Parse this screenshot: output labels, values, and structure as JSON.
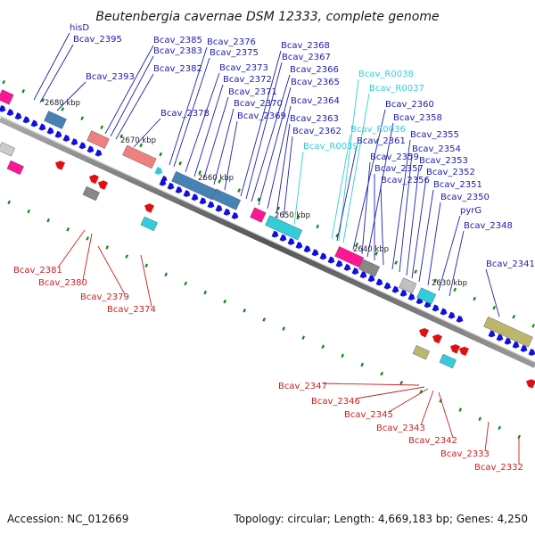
{
  "title": "Beutenbergia cavernae DSM 12333, complete genome",
  "footer": {
    "accession": "Accession: NC_012669",
    "summary": "Topology: circular; Length: 4,669,183 bp; Genes: 4,250"
  },
  "colors": {
    "forward_gene": "#1010e0",
    "reverse_gene": "#e01010",
    "rna_gene": "#33ccdd",
    "forward_label": "#2020b0",
    "reverse_label": "#cc2020",
    "rna_label": "#33ccdd",
    "backbone": "#777777",
    "tick": "#118811"
  },
  "kbp_marks": [
    "2680 kbp",
    "2670 kbp",
    "2660 kbp",
    "2650 kbp",
    "2640 kbp",
    "2630 kbp"
  ],
  "top_labels": [
    {
      "text": "hisD",
      "kind": "forward"
    },
    {
      "text": "Bcav_2395",
      "kind": "forward"
    },
    {
      "text": "Bcav_2393",
      "kind": "forward"
    },
    {
      "text": "Bcav_2385",
      "kind": "forward"
    },
    {
      "text": "Bcav_2383",
      "kind": "forward"
    },
    {
      "text": "Bcav_2382",
      "kind": "forward"
    },
    {
      "text": "Bcav_2378",
      "kind": "forward"
    },
    {
      "text": "Bcav_2376",
      "kind": "forward"
    },
    {
      "text": "Bcav_2375",
      "kind": "forward"
    },
    {
      "text": "Bcav_2373",
      "kind": "forward"
    },
    {
      "text": "Bcav_2372",
      "kind": "forward"
    },
    {
      "text": "Bcav_2371",
      "kind": "forward"
    },
    {
      "text": "Bcav_2370",
      "kind": "forward"
    },
    {
      "text": "Bcav_2369",
      "kind": "forward"
    },
    {
      "text": "Bcav_2368",
      "kind": "forward"
    },
    {
      "text": "Bcav_2367",
      "kind": "forward"
    },
    {
      "text": "Bcav_2366",
      "kind": "forward"
    },
    {
      "text": "Bcav_2365",
      "kind": "forward"
    },
    {
      "text": "Bcav_2364",
      "kind": "forward"
    },
    {
      "text": "Bcav_2363",
      "kind": "forward"
    },
    {
      "text": "Bcav_2362",
      "kind": "forward"
    },
    {
      "text": "Bcav_R0039",
      "kind": "rna"
    },
    {
      "text": "Bcav_R0038",
      "kind": "rna"
    },
    {
      "text": "Bcav_R0037",
      "kind": "rna"
    },
    {
      "text": "Bcav_R0036",
      "kind": "rna"
    },
    {
      "text": "Bcav_2361",
      "kind": "forward"
    },
    {
      "text": "Bcav_2360",
      "kind": "forward"
    },
    {
      "text": "Bcav_2359",
      "kind": "forward"
    },
    {
      "text": "Bcav_2358",
      "kind": "forward"
    },
    {
      "text": "Bcav_2357",
      "kind": "forward"
    },
    {
      "text": "Bcav_2356",
      "kind": "forward"
    },
    {
      "text": "Bcav_2355",
      "kind": "forward"
    },
    {
      "text": "Bcav_2354",
      "kind": "forward"
    },
    {
      "text": "Bcav_2353",
      "kind": "forward"
    },
    {
      "text": "Bcav_2352",
      "kind": "forward"
    },
    {
      "text": "Bcav_2351",
      "kind": "forward"
    },
    {
      "text": "Bcav_2350",
      "kind": "forward"
    },
    {
      "text": "pyrG",
      "kind": "forward"
    },
    {
      "text": "Bcav_2348",
      "kind": "forward"
    },
    {
      "text": "Bcav_2341",
      "kind": "forward"
    }
  ],
  "bottom_labels": [
    {
      "text": "Bcav_2381",
      "kind": "reverse"
    },
    {
      "text": "Bcav_2380",
      "kind": "reverse"
    },
    {
      "text": "Bcav_2379",
      "kind": "reverse"
    },
    {
      "text": "Bcav_2374",
      "kind": "reverse"
    },
    {
      "text": "Bcav_2347",
      "kind": "reverse"
    },
    {
      "text": "Bcav_2346",
      "kind": "reverse"
    },
    {
      "text": "Bcav_2345",
      "kind": "reverse"
    },
    {
      "text": "Bcav_2343",
      "kind": "reverse"
    },
    {
      "text": "Bcav_2342",
      "kind": "reverse"
    },
    {
      "text": "Bcav_2333",
      "kind": "reverse"
    },
    {
      "text": "Bcav_2332",
      "kind": "reverse"
    }
  ]
}
